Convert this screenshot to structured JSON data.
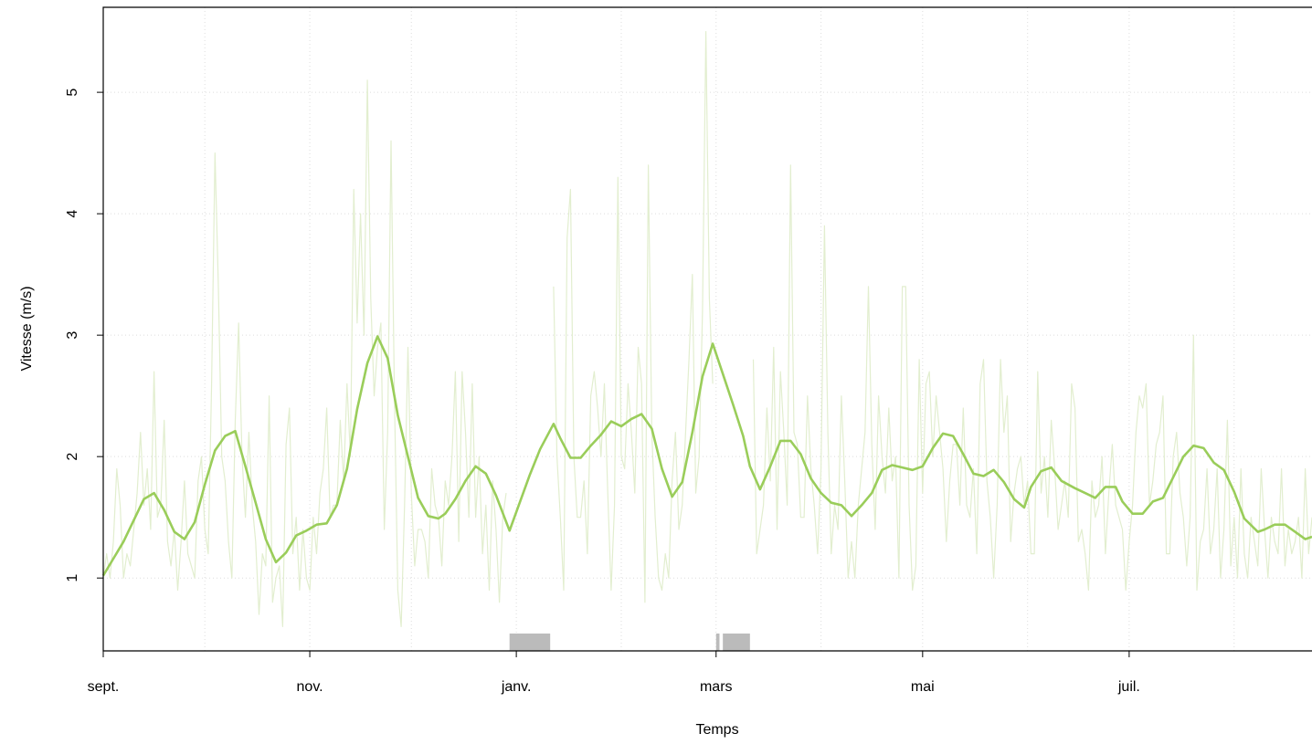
{
  "chart_data": {
    "type": "line",
    "xlabel": "Temps",
    "ylabel": "Vitesse (m/s)",
    "xlim": [
      0,
      357
    ],
    "ylim": [
      0.4,
      5.7
    ],
    "xticks": [
      {
        "value": 0,
        "label": "sept."
      },
      {
        "value": 30,
        "label": null
      },
      {
        "value": 61,
        "label": "nov."
      },
      {
        "value": 91,
        "label": null
      },
      {
        "value": 122,
        "label": "janv."
      },
      {
        "value": 153,
        "label": null
      },
      {
        "value": 181,
        "label": "mars"
      },
      {
        "value": 212,
        "label": null
      },
      {
        "value": 242,
        "label": "mai"
      },
      {
        "value": 273,
        "label": null
      },
      {
        "value": 303,
        "label": "juil."
      },
      {
        "value": 334,
        "label": null
      }
    ],
    "yticks": [
      1,
      2,
      3,
      4,
      5
    ],
    "grid": true,
    "gaps": [
      [
        120,
        132
      ],
      [
        181,
        182
      ],
      [
        183,
        191
      ]
    ],
    "gap_color": "#bbbbbb",
    "series": [
      {
        "color": "#e2eecf",
        "x": [
          0,
          1,
          2,
          3,
          4,
          5,
          6,
          7,
          8,
          9,
          10,
          11,
          12,
          13,
          14,
          15,
          16,
          17,
          18,
          19,
          20,
          21,
          22,
          23,
          24,
          25,
          26,
          27,
          28,
          29,
          30,
          31,
          32,
          33,
          34,
          35,
          36,
          37,
          38,
          39,
          40,
          41,
          42,
          43,
          44,
          45,
          46,
          47,
          48,
          49,
          50,
          51,
          52,
          53,
          54,
          55,
          56,
          57,
          58,
          59,
          60,
          61,
          62,
          63,
          64,
          65,
          66,
          67,
          68,
          69,
          70,
          71,
          72,
          73,
          74,
          75,
          76,
          77,
          78,
          79,
          80,
          81,
          82,
          83,
          84,
          85,
          86,
          87,
          88,
          89,
          90,
          91,
          92,
          93,
          94,
          95,
          96,
          97,
          98,
          99,
          100,
          101,
          102,
          103,
          104,
          105,
          106,
          107,
          108,
          109,
          110,
          111,
          112,
          113,
          114,
          115,
          116,
          117,
          118,
          119,
          120,
          121,
          122,
          123,
          124,
          125,
          126,
          127,
          128,
          129,
          130,
          131,
          132,
          133,
          134,
          135,
          136,
          137,
          138,
          139,
          140,
          141,
          142,
          143,
          144,
          145,
          146,
          147,
          148,
          149,
          150,
          151,
          152,
          153,
          154,
          155,
          156,
          157,
          158,
          159,
          160,
          161,
          162,
          163,
          164,
          165,
          166,
          167,
          168,
          169,
          170,
          171,
          172,
          173,
          174,
          175,
          176,
          177,
          178,
          179,
          180,
          181,
          182,
          183,
          184,
          185,
          186,
          187,
          188,
          189,
          190,
          191,
          192,
          193,
          194,
          195,
          196,
          197,
          198,
          199,
          200,
          201,
          202,
          203,
          204,
          205,
          206,
          207,
          208,
          209,
          210,
          211,
          212,
          213,
          214,
          215,
          216,
          217,
          218,
          219,
          220,
          221,
          222,
          223,
          224,
          225,
          226,
          227,
          228,
          229,
          230,
          231,
          232,
          233,
          234,
          235,
          236,
          237,
          238,
          239,
          240,
          241,
          242,
          243,
          244,
          245,
          246,
          247,
          248,
          249,
          250,
          251,
          252,
          253,
          254,
          255,
          256,
          257,
          258,
          259,
          260,
          261,
          262,
          263,
          264,
          265,
          266,
          267,
          268,
          269,
          270,
          271,
          272,
          273,
          274,
          275,
          276,
          277,
          278,
          279,
          280,
          281,
          282,
          283,
          284,
          285,
          286,
          287,
          288,
          289,
          290,
          291,
          292,
          293,
          294,
          295,
          296,
          297,
          298,
          299,
          300,
          301,
          302,
          303,
          304,
          305,
          306,
          307,
          308,
          309,
          310,
          311,
          312,
          313,
          314,
          315,
          316,
          317,
          318,
          319,
          320,
          321,
          322,
          323,
          324,
          325,
          326,
          327,
          328,
          329,
          330,
          331,
          332,
          333,
          334,
          335,
          336,
          337,
          338,
          339,
          340,
          341,
          342,
          343,
          344,
          345,
          346,
          347,
          348,
          349,
          350,
          351,
          352,
          353,
          354,
          355,
          356,
          357
        ],
        "values": [
          1.0,
          1.2,
          1.0,
          1.3,
          1.9,
          1.6,
          1.0,
          1.2,
          1.1,
          1.4,
          1.7,
          2.2,
          1.6,
          1.9,
          1.4,
          2.7,
          1.5,
          1.6,
          2.3,
          1.3,
          1.1,
          1.4,
          0.9,
          1.3,
          1.8,
          1.2,
          1.1,
          1.0,
          1.8,
          2.0,
          1.4,
          1.2,
          2.6,
          4.5,
          3.4,
          2.0,
          1.8,
          1.3,
          1.0,
          2.3,
          3.1,
          2.0,
          1.5,
          2.2,
          1.6,
          1.3,
          0.7,
          1.2,
          1.1,
          2.5,
          0.8,
          1.0,
          1.1,
          0.6,
          2.1,
          2.4,
          1.2,
          1.5,
          0.9,
          1.4,
          1.0,
          0.9,
          1.5,
          1.2,
          1.7,
          1.9,
          2.4,
          1.5,
          1.6,
          1.6,
          2.3,
          1.8,
          2.6,
          2.0,
          4.2,
          3.1,
          4.0,
          3.0,
          5.1,
          3.3,
          2.5,
          2.9,
          3.1,
          1.4,
          2.2,
          4.6,
          2.5,
          0.9,
          0.6,
          1.6,
          2.9,
          1.7,
          1.1,
          1.4,
          1.4,
          1.3,
          1.0,
          1.9,
          1.6,
          1.5,
          1.1,
          1.8,
          1.6,
          2.0,
          2.7,
          1.3,
          2.7,
          2.2,
          1.5,
          2.6,
          1.5,
          2.0,
          1.2,
          1.6,
          0.9,
          1.8,
          1.4,
          0.8,
          1.5,
          1.7,
          null,
          null,
          null,
          null,
          null,
          null,
          null,
          null,
          null,
          null,
          null,
          null,
          null,
          3.4,
          2.0,
          1.5,
          0.9,
          3.8,
          4.2,
          2.0,
          1.5,
          1.5,
          1.8,
          1.2,
          2.5,
          2.7,
          2.4,
          2.0,
          2.6,
          1.7,
          0.9,
          1.6,
          4.3,
          2.0,
          1.9,
          2.6,
          2.2,
          1.7,
          2.9,
          2.6,
          0.8,
          4.4,
          2.2,
          1.5,
          1.0,
          0.9,
          1.2,
          1.0,
          1.8,
          2.2,
          1.4,
          1.6,
          2.2,
          2.8,
          3.5,
          1.7,
          2.0,
          3.2,
          5.5,
          3.3,
          2.6,
          null,
          null,
          null,
          null,
          null,
          null,
          null,
          null,
          null,
          null,
          null,
          2.8,
          1.2,
          1.4,
          1.6,
          2.4,
          1.8,
          2.9,
          1.4,
          2.7,
          2.2,
          1.6,
          4.4,
          2.2,
          2.1,
          1.5,
          1.5,
          2.5,
          1.9,
          1.6,
          1.2,
          1.9,
          3.9,
          2.2,
          1.2,
          1.6,
          1.4,
          2.5,
          1.8,
          1.0,
          1.3,
          1.0,
          1.6,
          1.9,
          2.2,
          3.4,
          2.1,
          1.4,
          2.5,
          2.0,
          1.7,
          2.4,
          1.8,
          2.0,
          1.0,
          3.4,
          3.4,
          1.6,
          0.9,
          1.1,
          2.8,
          1.7,
          2.6,
          2.7,
          2.0,
          2.5,
          2.2,
          1.9,
          1.3,
          1.8,
          2.1,
          2.1,
          1.6,
          2.4,
          1.6,
          1.5,
          1.9,
          1.2,
          2.6,
          2.8,
          1.8,
          1.5,
          1.0,
          1.6,
          2.8,
          2.2,
          2.5,
          1.3,
          1.7,
          1.9,
          2.0,
          1.6,
          1.8,
          1.2,
          1.2,
          2.7,
          1.7,
          2.0,
          1.5,
          2.3,
          1.9,
          1.4,
          1.6,
          1.8,
          1.5,
          2.6,
          2.4,
          1.3,
          1.4,
          1.2,
          0.9,
          1.8,
          1.5,
          1.6,
          2.0,
          1.2,
          1.7,
          2.1,
          1.6,
          1.5,
          1.4,
          0.9,
          1.3,
          1.6,
          2.2,
          2.5,
          2.4,
          2.6,
          1.6,
          1.8,
          2.1,
          2.2,
          2.5,
          1.2,
          1.2,
          2.0,
          2.2,
          1.7,
          1.5,
          1.1,
          1.5,
          3.0,
          0.9,
          1.3,
          1.4,
          1.9,
          1.2,
          1.4,
          1.9,
          1.0,
          1.4,
          2.3,
          1.1,
          1.5,
          1.0,
          1.9,
          1.2,
          1.0,
          1.5,
          1.3,
          1.1,
          1.9,
          1.4,
          1.0,
          1.5,
          1.3,
          1.2,
          1.9,
          1.1,
          1.4,
          1.2,
          1.3,
          1.5,
          1.0,
          1.9,
          1.2,
          1.5
        ]
      },
      {
        "color": "#9acd5a",
        "x": [
          0,
          6,
          12,
          15,
          18,
          21,
          24,
          27,
          30,
          33,
          36,
          39,
          42,
          45,
          48,
          51,
          54,
          57,
          60,
          63,
          66,
          69,
          72,
          75,
          78,
          81,
          84,
          87,
          90,
          93,
          96,
          99,
          101,
          104,
          107,
          110,
          113,
          116,
          120,
          123,
          126,
          129,
          133,
          135,
          138,
          141,
          144,
          147,
          150,
          153,
          156,
          159,
          162,
          165,
          168,
          171,
          174,
          177,
          180,
          183,
          186,
          189,
          191,
          194,
          197,
          200,
          203,
          206,
          209,
          212,
          215,
          218,
          221,
          224,
          227,
          230,
          233,
          236,
          239,
          242,
          245,
          248,
          251,
          254,
          257,
          260,
          263,
          266,
          269,
          272,
          274,
          277,
          280,
          283,
          287,
          290,
          293,
          296,
          299,
          301,
          304,
          307,
          310,
          313,
          316,
          319,
          322,
          325,
          328,
          331,
          334,
          337,
          341,
          343,
          346,
          349,
          352,
          355,
          357
        ],
        "values": [
          1.02,
          1.3,
          1.65,
          1.7,
          1.56,
          1.38,
          1.32,
          1.46,
          1.77,
          2.05,
          2.17,
          2.21,
          1.92,
          1.62,
          1.32,
          1.13,
          1.21,
          1.35,
          1.39,
          1.44,
          1.45,
          1.6,
          1.9,
          2.39,
          2.77,
          2.99,
          2.81,
          2.34,
          2.0,
          1.66,
          1.51,
          1.49,
          1.53,
          1.65,
          1.8,
          1.92,
          1.86,
          1.68,
          1.39,
          1.62,
          1.85,
          2.06,
          2.27,
          2.15,
          1.99,
          1.99,
          2.09,
          2.18,
          2.29,
          2.25,
          2.31,
          2.35,
          2.23,
          1.9,
          1.67,
          1.79,
          2.2,
          2.66,
          2.93,
          2.68,
          2.43,
          2.17,
          1.92,
          1.73,
          1.92,
          2.13,
          2.13,
          2.02,
          1.82,
          1.7,
          1.62,
          1.6,
          1.51,
          1.6,
          1.7,
          1.89,
          1.93,
          1.91,
          1.89,
          1.92,
          2.07,
          2.19,
          2.17,
          2.02,
          1.86,
          1.84,
          1.89,
          1.79,
          1.65,
          1.58,
          1.75,
          1.88,
          1.91,
          1.8,
          1.74,
          1.7,
          1.66,
          1.75,
          1.75,
          1.63,
          1.53,
          1.53,
          1.63,
          1.66,
          1.83,
          2.0,
          2.09,
          2.07,
          1.95,
          1.89,
          1.71,
          1.49,
          1.38,
          1.4,
          1.44,
          1.44,
          1.38,
          1.32,
          1.34
        ]
      }
    ]
  }
}
